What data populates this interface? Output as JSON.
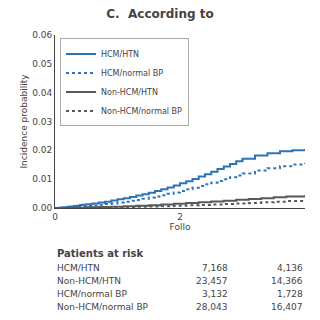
{
  "chart_data": {
    "type": "line",
    "title": "C.  According to",
    "y_label": "Incidence probability",
    "x_label": "Follo",
    "xlim": [
      0,
      4
    ],
    "ylim": [
      0,
      0.06
    ],
    "xticks": [
      0,
      2
    ],
    "yticks": [
      {
        "value": 0.0,
        "label": "0.00"
      },
      0.01,
      0.02,
      0.03,
      0.04,
      0.05,
      0.06
    ],
    "grid": false,
    "legend": "upper left",
    "series": [
      {
        "name": "HCM/HTN",
        "color": "#2e74b5",
        "line_style": "solid",
        "x": [
          0,
          0.05,
          0.1,
          0.15,
          0.2,
          0.25,
          0.3,
          0.35,
          0.4,
          0.45,
          0.5,
          0.6,
          0.7,
          0.8,
          0.9,
          1.0,
          1.1,
          1.2,
          1.3,
          1.4,
          1.5,
          1.6,
          1.7,
          1.8,
          1.9,
          2.0,
          2.1,
          2.2,
          2.3,
          2.4,
          2.5,
          2.6,
          2.7,
          2.8,
          2.9,
          3.0,
          3.2,
          3.4,
          3.6,
          3.8,
          4.0
        ],
        "values": [
          0,
          0.0001,
          0.0002,
          0.0003,
          0.0004,
          0.0005,
          0.0007,
          0.0008,
          0.001,
          0.0011,
          0.0013,
          0.0016,
          0.0019,
          0.0022,
          0.0026,
          0.003,
          0.0034,
          0.0038,
          0.0043,
          0.0048,
          0.0053,
          0.0059,
          0.0065,
          0.0071,
          0.0078,
          0.0086,
          0.0093,
          0.0101,
          0.0109,
          0.0117,
          0.0126,
          0.0135,
          0.0144,
          0.0153,
          0.0162,
          0.0171,
          0.0182,
          0.019,
          0.0197,
          0.02,
          0.0205
        ]
      },
      {
        "name": "HCM/normal BP",
        "color": "#2e74b5",
        "line_style": "dotted",
        "x": [
          0,
          0.1,
          0.2,
          0.3,
          0.4,
          0.5,
          0.6,
          0.7,
          0.8,
          0.9,
          1.0,
          1.1,
          1.2,
          1.3,
          1.4,
          1.5,
          1.6,
          1.7,
          1.8,
          1.9,
          2.0,
          2.1,
          2.2,
          2.3,
          2.4,
          2.5,
          2.6,
          2.7,
          2.8,
          2.9,
          3.0,
          3.2,
          3.4,
          3.6,
          3.8,
          4.0
        ],
        "values": [
          0,
          0.0001,
          0.0002,
          0.0004,
          0.0005,
          0.0007,
          0.0009,
          0.0011,
          0.0014,
          0.0016,
          0.0019,
          0.0022,
          0.0025,
          0.0028,
          0.0032,
          0.0036,
          0.004,
          0.0044,
          0.0049,
          0.0054,
          0.0059,
          0.0065,
          0.007,
          0.0076,
          0.0082,
          0.0088,
          0.0094,
          0.01,
          0.0107,
          0.0113,
          0.012,
          0.013,
          0.0138,
          0.0145,
          0.0151,
          0.0156
        ]
      },
      {
        "name": "Non-HCM/HTN",
        "color": "#595959",
        "line_style": "solid",
        "x": [
          0,
          0.1,
          0.2,
          0.3,
          0.5,
          0.7,
          0.9,
          1.1,
          1.3,
          1.5,
          1.7,
          1.9,
          2.1,
          2.3,
          2.5,
          2.7,
          2.9,
          3.1,
          3.3,
          3.5,
          3.7,
          4.0
        ],
        "values": [
          0,
          4e-05,
          8e-05,
          0.00013,
          0.00022,
          0.00033,
          0.00046,
          0.00061,
          0.00078,
          0.00098,
          0.0012,
          0.00144,
          0.0017,
          0.00197,
          0.00225,
          0.00254,
          0.00283,
          0.00313,
          0.00342,
          0.00371,
          0.00399,
          0.0044
        ]
      },
      {
        "name": "Non-HCM/normal BP",
        "color": "#595959",
        "line_style": "dotted",
        "x": [
          0,
          0.1,
          0.2,
          0.3,
          0.5,
          0.7,
          0.9,
          1.1,
          1.3,
          1.5,
          1.7,
          1.9,
          2.1,
          2.3,
          2.5,
          2.7,
          2.9,
          3.1,
          3.3,
          3.5,
          3.7,
          4.0
        ],
        "values": [
          0,
          2e-05,
          4e-05,
          7e-05,
          0.00012,
          0.00018,
          0.00025,
          0.00033,
          0.00042,
          0.00053,
          0.00065,
          0.00078,
          0.00092,
          0.00107,
          0.00123,
          0.0014,
          0.00158,
          0.00177,
          0.00197,
          0.00218,
          0.00239,
          0.0027
        ]
      }
    ],
    "table": {
      "title": "Patients at risk",
      "rows": [
        [
          "HCM/HTN",
          "7,168",
          "4,136"
        ],
        [
          "Non-HCM/HTN",
          "23,457",
          "14,366"
        ],
        [
          "HCM/normal BP",
          "3,132",
          "1,728"
        ],
        [
          "Non-HCM/normal BP",
          "28,043",
          "16,407"
        ]
      ]
    }
  }
}
